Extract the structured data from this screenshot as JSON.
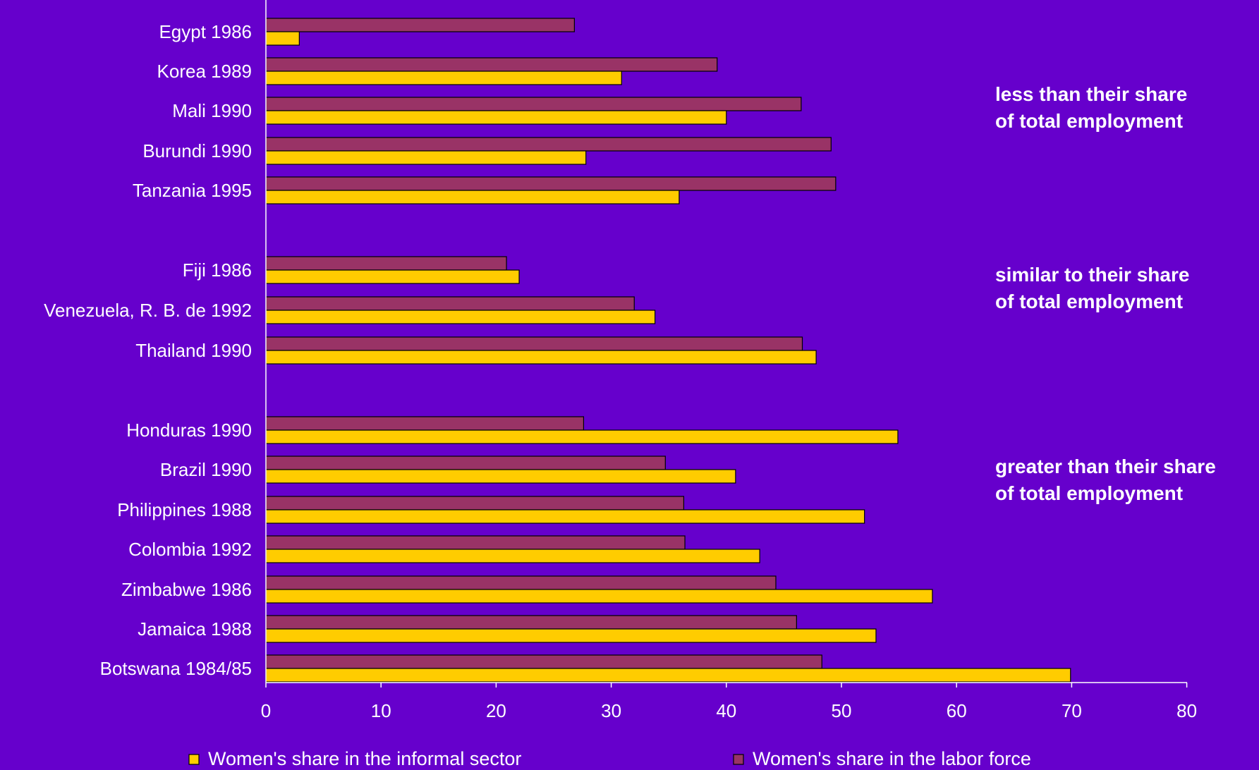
{
  "chart_data": {
    "type": "bar",
    "orientation": "horizontal",
    "title": "",
    "xlabel": "",
    "ylabel": "",
    "xlim": [
      0,
      80
    ],
    "x_ticks": [
      "0",
      "10",
      "20",
      "30",
      "40",
      "50",
      "60",
      "70",
      "80"
    ],
    "grid": false,
    "legend_position": "bottom",
    "categories": [
      "Egypt 1986",
      "Korea 1989",
      "Mali 1990",
      "Burundi 1990",
      "Tanzania 1995",
      "Fiji 1986",
      "Venezuela, R. B. de 1992",
      "Thailand 1990",
      "Honduras 1990",
      "Brazil 1990",
      "Philippines 1988",
      "Colombia 1992",
      "Zimbabwe 1986",
      "Jamaica 1988",
      "Botswana 1984/85"
    ],
    "groups": [
      {
        "label": "less than their share of total employment",
        "lines": [
          "less than their share",
          "of total employment"
        ],
        "categories": [
          0,
          1,
          2,
          3,
          4
        ]
      },
      {
        "label": "similar to their share of total employment",
        "lines": [
          "similar to their share",
          "of total employment"
        ],
        "categories": [
          5,
          6,
          7
        ]
      },
      {
        "label": "greater than their share of total employment",
        "lines": [
          "greater than their share",
          "of total employment"
        ],
        "categories": [
          8,
          9,
          10,
          11,
          12,
          13,
          14
        ]
      }
    ],
    "series": [
      {
        "name": "Women's share in the labor force",
        "color": "#993366",
        "values": [
          26.8,
          39.2,
          46.5,
          49.1,
          49.5,
          20.9,
          32.0,
          46.6,
          27.6,
          34.7,
          36.3,
          36.4,
          44.3,
          46.1,
          48.3
        ]
      },
      {
        "name": "Women's share in the informal sector",
        "color": "#FFCC00",
        "values": [
          2.9,
          30.9,
          40.0,
          27.8,
          35.9,
          22.0,
          33.8,
          47.8,
          54.9,
          40.8,
          52.0,
          42.9,
          57.9,
          53.0,
          69.9
        ]
      }
    ],
    "legend": [
      {
        "label": "Women's share in the informal sector",
        "color": "#FFCC00"
      },
      {
        "label": "Women's share in the labor force",
        "color": "#993366"
      }
    ]
  }
}
